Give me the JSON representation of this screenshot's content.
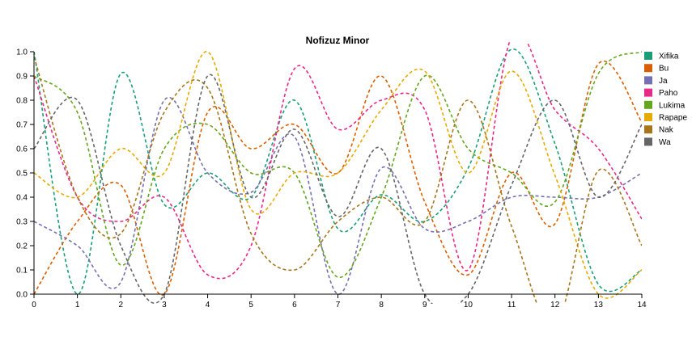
{
  "chart_data": {
    "type": "line",
    "title": "Nofizuz Minor",
    "xlabel": "",
    "ylabel": "",
    "xlim": [
      0,
      14
    ],
    "ylim": [
      0,
      1.0
    ],
    "x_ticks": [
      "0",
      "1",
      "2",
      "3",
      "4",
      "5",
      "6",
      "7",
      "8",
      "9",
      "10",
      "11",
      "12",
      "13",
      "14"
    ],
    "y_ticks": [
      "0.0",
      "0.1",
      "0.2",
      "0.3",
      "0.4",
      "0.5",
      "0.6",
      "0.7",
      "0.8",
      "0.9",
      "1.0"
    ],
    "grid": false,
    "legend_position": "right",
    "line_style": "dashed",
    "x": [
      0,
      1,
      2,
      3,
      4,
      5,
      6,
      7,
      8,
      9,
      10,
      11,
      12,
      13,
      14
    ],
    "series": [
      {
        "name": "Xifika",
        "color": "#1b9e77",
        "values": [
          1.0,
          0.0,
          0.91,
          0.37,
          0.5,
          0.4,
          0.8,
          0.27,
          0.41,
          0.3,
          0.52,
          1.01,
          0.62,
          0.04,
          0.1
        ]
      },
      {
        "name": "Bu",
        "color": "#d95f02",
        "values": [
          0.0,
          0.3,
          0.45,
          0.0,
          0.75,
          0.6,
          0.7,
          0.5,
          0.9,
          0.38,
          0.08,
          0.5,
          0.29,
          0.95,
          0.71
        ]
      },
      {
        "name": "Ja",
        "color": "#7570b3",
        "values": [
          0.3,
          0.2,
          0.05,
          0.8,
          0.5,
          0.42,
          0.65,
          0.0,
          0.52,
          0.27,
          0.3,
          0.4,
          0.4,
          0.4,
          0.5
        ]
      },
      {
        "name": "Paho",
        "color": "#e7298a",
        "values": [
          0.9,
          0.4,
          0.3,
          0.4,
          0.08,
          0.2,
          0.93,
          0.68,
          0.8,
          0.76,
          0.1,
          1.06,
          0.76,
          0.6,
          0.31
        ]
      },
      {
        "name": "Lukima",
        "color": "#66a61e",
        "values": [
          0.9,
          0.75,
          0.12,
          0.6,
          0.7,
          0.5,
          0.5,
          0.07,
          0.4,
          0.9,
          0.6,
          0.5,
          0.38,
          0.91,
          1.0
        ]
      },
      {
        "name": "Rapape",
        "color": "#e6ab02",
        "values": [
          0.5,
          0.4,
          0.6,
          0.5,
          1.0,
          0.35,
          0.5,
          0.5,
          0.76,
          0.92,
          0.5,
          0.92,
          0.49,
          0.0,
          0.1
        ]
      },
      {
        "name": "Nak",
        "color": "#a6761d",
        "values": [
          0.98,
          0.4,
          0.25,
          0.75,
          0.85,
          0.25,
          0.1,
          0.3,
          0.4,
          0.3,
          0.8,
          0.28,
          -0.13,
          0.51,
          0.2
        ]
      },
      {
        "name": "Wa",
        "color": "#666666",
        "values": [
          0.6,
          0.8,
          0.2,
          0.0,
          0.9,
          0.4,
          0.68,
          0.32,
          0.6,
          0.0,
          0.0,
          0.45,
          0.8,
          0.4,
          0.7
        ]
      }
    ]
  }
}
